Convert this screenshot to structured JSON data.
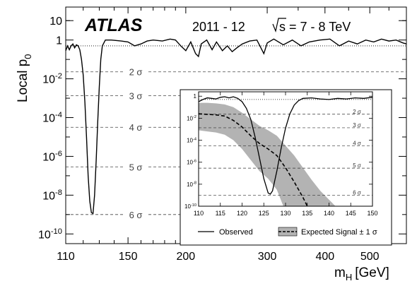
{
  "chart_data": {
    "type": "line",
    "title": "",
    "experiment_label": "ATLAS",
    "period_label": "2011 - 12",
    "energy_label": {
      "root": "s",
      "rest": "= 7 - 8 TeV"
    },
    "ylabel": {
      "main": "Local p",
      "sub": "0"
    },
    "xlabel": {
      "main": "m",
      "sub": "H",
      "unit": "[GeV]"
    },
    "xscale": "log",
    "yscale": "log",
    "xlim": [
      110,
      600
    ],
    "ylim_exp": [
      -10.5,
      1.7
    ],
    "x_ticks": [
      {
        "value": 110,
        "label": "110"
      },
      {
        "value": 150,
        "label": "150"
      },
      {
        "value": 200,
        "label": "200"
      },
      {
        "value": 300,
        "label": "300"
      },
      {
        "value": 400,
        "label": "400"
      },
      {
        "value": 500,
        "label": "500"
      }
    ],
    "y_ticks": [
      {
        "exp": 1,
        "label": "10"
      },
      {
        "exp": 0,
        "label": "1"
      },
      {
        "exp": -2,
        "label": "10",
        "sup": "-2"
      },
      {
        "exp": -4,
        "label": "10",
        "sup": "-4"
      },
      {
        "exp": -6,
        "label": "10",
        "sup": "-6"
      },
      {
        "exp": -8,
        "label": "10",
        "sup": "-8"
      },
      {
        "exp": -10,
        "label": "10",
        "sup": "-10"
      }
    ],
    "sigma_lines": [
      {
        "label": "2 σ",
        "exp": -1.64
      },
      {
        "label": "3 σ",
        "exp": -2.87
      },
      {
        "label": "4 σ",
        "exp": -4.5
      },
      {
        "label": "5 σ",
        "exp": -6.54
      },
      {
        "label": "6 σ",
        "exp": -9.0
      }
    ],
    "series": [
      {
        "points": [
          [
            110,
            -0.55
          ],
          [
            111,
            -0.3
          ],
          [
            112,
            -0.5
          ],
          [
            113,
            -0.3
          ],
          [
            114,
            -0.2
          ],
          [
            115,
            -0.4
          ],
          [
            116,
            -0.25
          ],
          [
            117,
            -0.3
          ],
          [
            118,
            -0.5
          ],
          [
            119,
            -1.0
          ],
          [
            120,
            -1.8
          ],
          [
            121,
            -3.2
          ],
          [
            122,
            -5.0
          ],
          [
            123,
            -7.0
          ],
          [
            124,
            -8.3
          ],
          [
            125,
            -8.9
          ],
          [
            126,
            -8.95
          ],
          [
            127,
            -8.0
          ],
          [
            128,
            -6.2
          ],
          [
            129,
            -4.2
          ],
          [
            130,
            -2.4
          ],
          [
            131,
            -1.0
          ],
          [
            132,
            -0.3
          ],
          [
            134,
            0.0
          ],
          [
            138,
            0.0
          ],
          [
            145,
            -0.05
          ],
          [
            150,
            -0.1
          ],
          [
            155,
            -0.3
          ],
          [
            160,
            -0.2
          ],
          [
            165,
            -0.05
          ],
          [
            170,
            0.0
          ],
          [
            178,
            -0.05
          ],
          [
            185,
            0.05
          ],
          [
            190,
            0.0
          ],
          [
            195,
            -0.3
          ],
          [
            200,
            -0.55
          ],
          [
            205,
            -0.1
          ],
          [
            210,
            -0.7
          ],
          [
            213,
            -0.85
          ],
          [
            216,
            -0.2
          ],
          [
            222,
            0.0
          ],
          [
            228,
            -0.5
          ],
          [
            233,
            -0.1
          ],
          [
            240,
            -0.55
          ],
          [
            246,
            -0.3
          ],
          [
            252,
            -0.6
          ],
          [
            258,
            -0.4
          ],
          [
            265,
            -0.2
          ],
          [
            275,
            -0.05
          ],
          [
            285,
            0.0
          ],
          [
            295,
            -0.7
          ],
          [
            300,
            -0.15
          ],
          [
            310,
            0.05
          ],
          [
            325,
            -0.25
          ],
          [
            340,
            0.0
          ],
          [
            355,
            -0.3
          ],
          [
            370,
            -0.1
          ],
          [
            390,
            0.0
          ],
          [
            410,
            0.05
          ],
          [
            430,
            -0.3
          ],
          [
            450,
            -0.05
          ],
          [
            470,
            -0.2
          ],
          [
            490,
            0.0
          ],
          [
            510,
            -0.1
          ],
          [
            530,
            0.05
          ],
          [
            550,
            -0.05
          ],
          [
            570,
            0.0
          ],
          [
            590,
            -0.15
          ],
          [
            600,
            -0.2
          ]
        ]
      }
    ],
    "inset": {
      "xscale": "linear",
      "yscale": "log",
      "xlim": [
        110,
        150
      ],
      "ylim_exp": [
        -10,
        0.4
      ],
      "x_ticks": [
        110,
        115,
        120,
        125,
        130,
        135,
        140,
        145,
        150
      ],
      "y_ticks": [
        {
          "exp": 0,
          "label": "1"
        },
        {
          "exp": -2,
          "label": "10",
          "sup": "-2"
        },
        {
          "exp": -4,
          "label": "10",
          "sup": "-4"
        },
        {
          "exp": -6,
          "label": "10",
          "sup": "-6"
        },
        {
          "exp": -8,
          "label": "10",
          "sup": "-8"
        },
        {
          "exp": -10,
          "label": "10",
          "sup": "-10"
        }
      ],
      "sigma_lines": [
        {
          "label": "2 σ",
          "exp": -1.64
        },
        {
          "label": "3 σ",
          "exp": -2.87
        },
        {
          "label": "4 σ",
          "exp": -4.5
        },
        {
          "label": "5 σ",
          "exp": -6.54
        },
        {
          "label": "6 σ",
          "exp": -9.0
        }
      ],
      "observed": [
        [
          110,
          -0.5
        ],
        [
          111,
          -0.3
        ],
        [
          112,
          -0.15
        ],
        [
          113,
          -0.2
        ],
        [
          114,
          -0.25
        ],
        [
          115,
          -0.1
        ],
        [
          116,
          -0.05
        ],
        [
          117,
          -0.15
        ],
        [
          118,
          -0.05
        ],
        [
          119,
          -0.2
        ],
        [
          120,
          -0.5
        ],
        [
          121,
          -1.1
        ],
        [
          122,
          -2.1
        ],
        [
          123,
          -3.7
        ],
        [
          124,
          -5.6
        ],
        [
          125,
          -7.5
        ],
        [
          126,
          -8.8
        ],
        [
          126.5,
          -8.9
        ],
        [
          127,
          -8.6
        ],
        [
          128,
          -6.8
        ],
        [
          129,
          -4.7
        ],
        [
          130,
          -2.9
        ],
        [
          131,
          -1.6
        ],
        [
          132,
          -0.8
        ],
        [
          133,
          -0.4
        ],
        [
          134,
          -0.2
        ],
        [
          136,
          -0.15
        ],
        [
          138,
          -0.25
        ],
        [
          140,
          -0.3
        ],
        [
          142,
          -0.2
        ],
        [
          144,
          -0.25
        ],
        [
          146,
          -0.15
        ],
        [
          148,
          -0.2
        ],
        [
          150,
          -0.1
        ]
      ],
      "expected": [
        [
          110,
          -1.6
        ],
        [
          112,
          -1.65
        ],
        [
          114,
          -1.7
        ],
        [
          116,
          -1.8
        ],
        [
          118,
          -2.2
        ],
        [
          120,
          -2.8
        ],
        [
          122,
          -3.6
        ],
        [
          124,
          -4.3
        ],
        [
          126,
          -4.8
        ],
        [
          128,
          -5.4
        ],
        [
          130,
          -6.5
        ],
        [
          132,
          -7.8
        ],
        [
          134,
          -9.2
        ],
        [
          135,
          -10.0
        ]
      ],
      "band_upper": [
        [
          110,
          -0.6
        ],
        [
          112,
          -0.6
        ],
        [
          114,
          -0.65
        ],
        [
          116,
          -0.75
        ],
        [
          118,
          -1.0
        ],
        [
          120,
          -1.5
        ],
        [
          122,
          -2.1
        ],
        [
          124,
          -2.7
        ],
        [
          126,
          -3.1
        ],
        [
          128,
          -3.6
        ],
        [
          130,
          -4.5
        ],
        [
          132,
          -5.4
        ],
        [
          134,
          -6.5
        ],
        [
          136,
          -7.6
        ],
        [
          138,
          -8.6
        ],
        [
          140,
          -9.4
        ],
        [
          141.5,
          -10.0
        ]
      ],
      "band_lower": [
        [
          110,
          -3.1
        ],
        [
          112,
          -3.2
        ],
        [
          114,
          -3.3
        ],
        [
          116,
          -3.5
        ],
        [
          118,
          -4.0
        ],
        [
          120,
          -4.8
        ],
        [
          122,
          -5.8
        ],
        [
          124,
          -6.8
        ],
        [
          126,
          -7.5
        ],
        [
          128,
          -8.5
        ],
        [
          129.5,
          -10.0
        ]
      ],
      "legend": [
        {
          "label": "Observed",
          "style": "solid"
        },
        {
          "label": "Expected Signal ± 1 σ",
          "style": "band-dashed"
        }
      ],
      "band_color": "#b3b3b3"
    }
  }
}
